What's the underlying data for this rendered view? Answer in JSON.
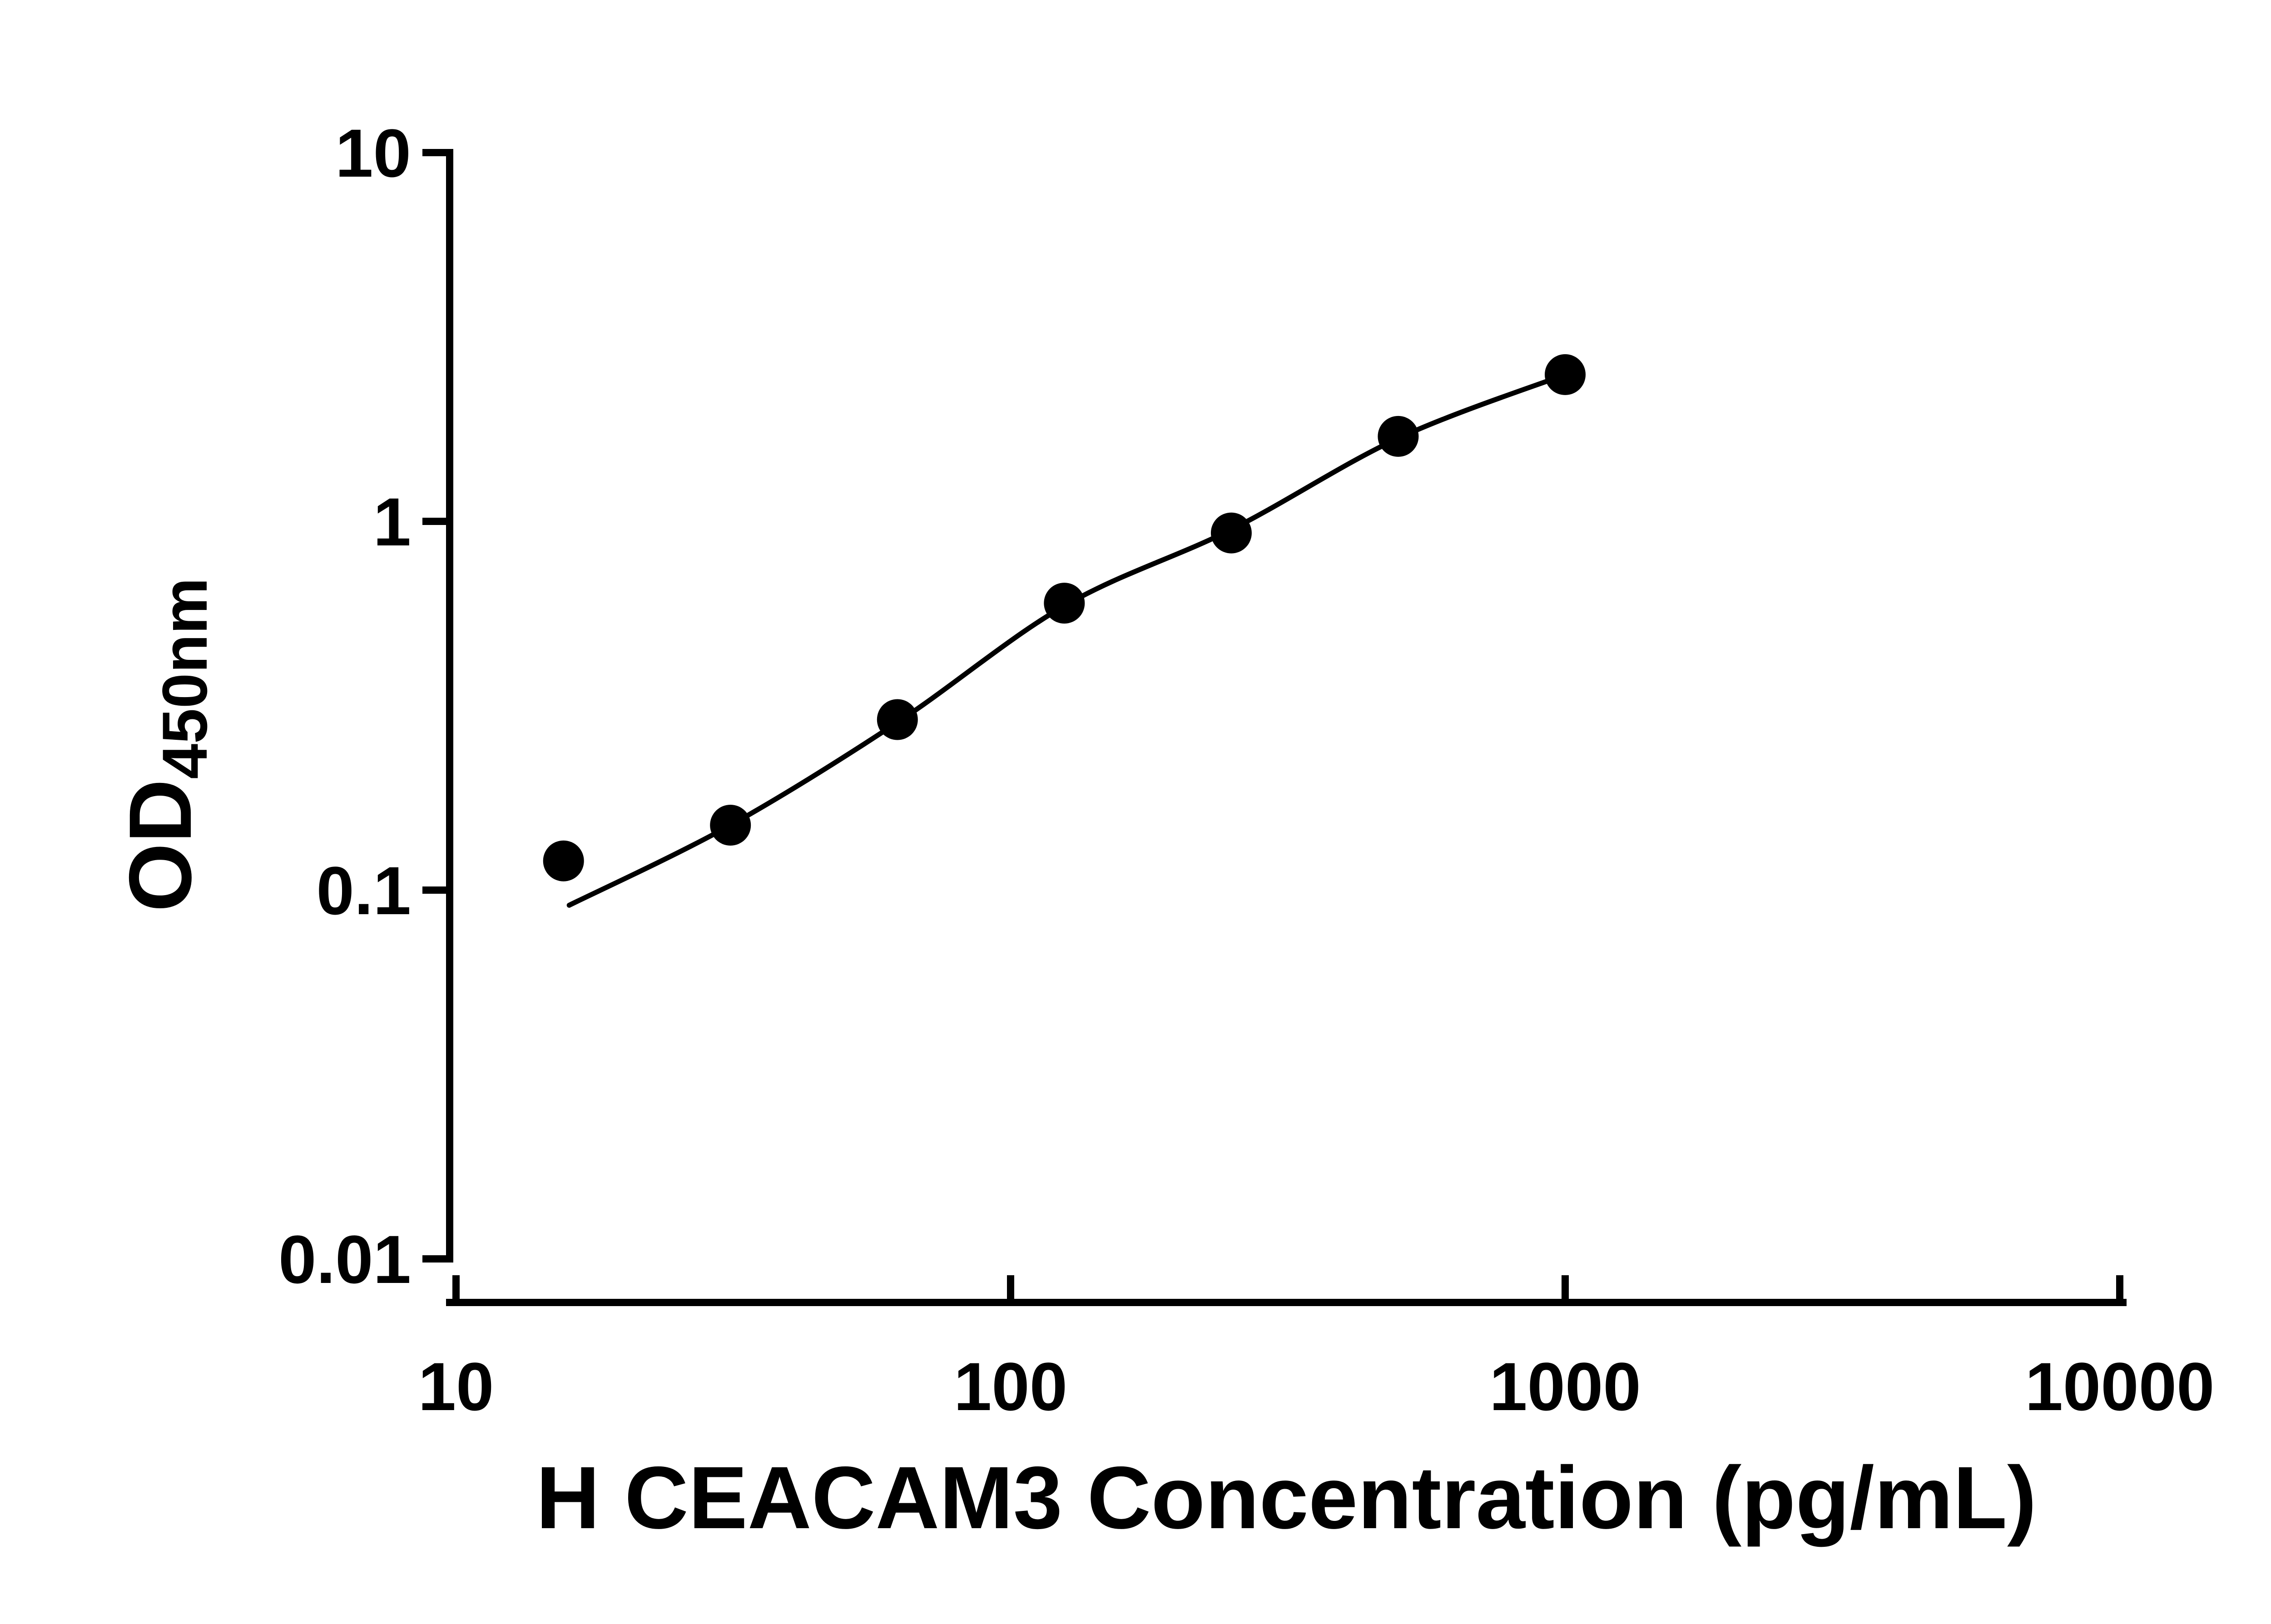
{
  "chart_data": {
    "type": "scatter",
    "subtype": "elisa-standard-curve",
    "title": "",
    "xlabel": "H CEACAM3 Concentration (pg/mL)",
    "ylabel_main": "OD",
    "ylabel_sub": "450nm",
    "x_scale": "log10",
    "y_scale": "log10",
    "xlim": [
      10,
      10000
    ],
    "ylim": [
      0.01,
      10
    ],
    "x_ticks": [
      10,
      100,
      1000,
      10000
    ],
    "x_tick_labels": [
      "10",
      "100",
      "1000",
      "10000"
    ],
    "y_ticks": [
      10,
      1,
      0.1,
      0.01
    ],
    "y_tick_labels": [
      "10",
      "1",
      "0.1",
      "0.01"
    ],
    "grid": false,
    "legend": false,
    "points": [
      {
        "x": 15.625,
        "y": 0.12
      },
      {
        "x": 31.25,
        "y": 0.15
      },
      {
        "x": 62.5,
        "y": 0.29
      },
      {
        "x": 125,
        "y": 0.6
      },
      {
        "x": 250,
        "y": 0.93
      },
      {
        "x": 500,
        "y": 1.7
      },
      {
        "x": 1000,
        "y": 2.5
      }
    ],
    "fit_curve": [
      {
        "x": 16,
        "y": 0.091
      },
      {
        "x": 31.25,
        "y": 0.15
      },
      {
        "x": 62.5,
        "y": 0.285
      },
      {
        "x": 125,
        "y": 0.59
      },
      {
        "x": 250,
        "y": 0.95
      },
      {
        "x": 500,
        "y": 1.68
      },
      {
        "x": 1000,
        "y": 2.5
      }
    ],
    "colors": {
      "points": "#000000",
      "curve": "#000000",
      "axis": "#000000",
      "text": "#000000",
      "background": "#ffffff"
    }
  }
}
